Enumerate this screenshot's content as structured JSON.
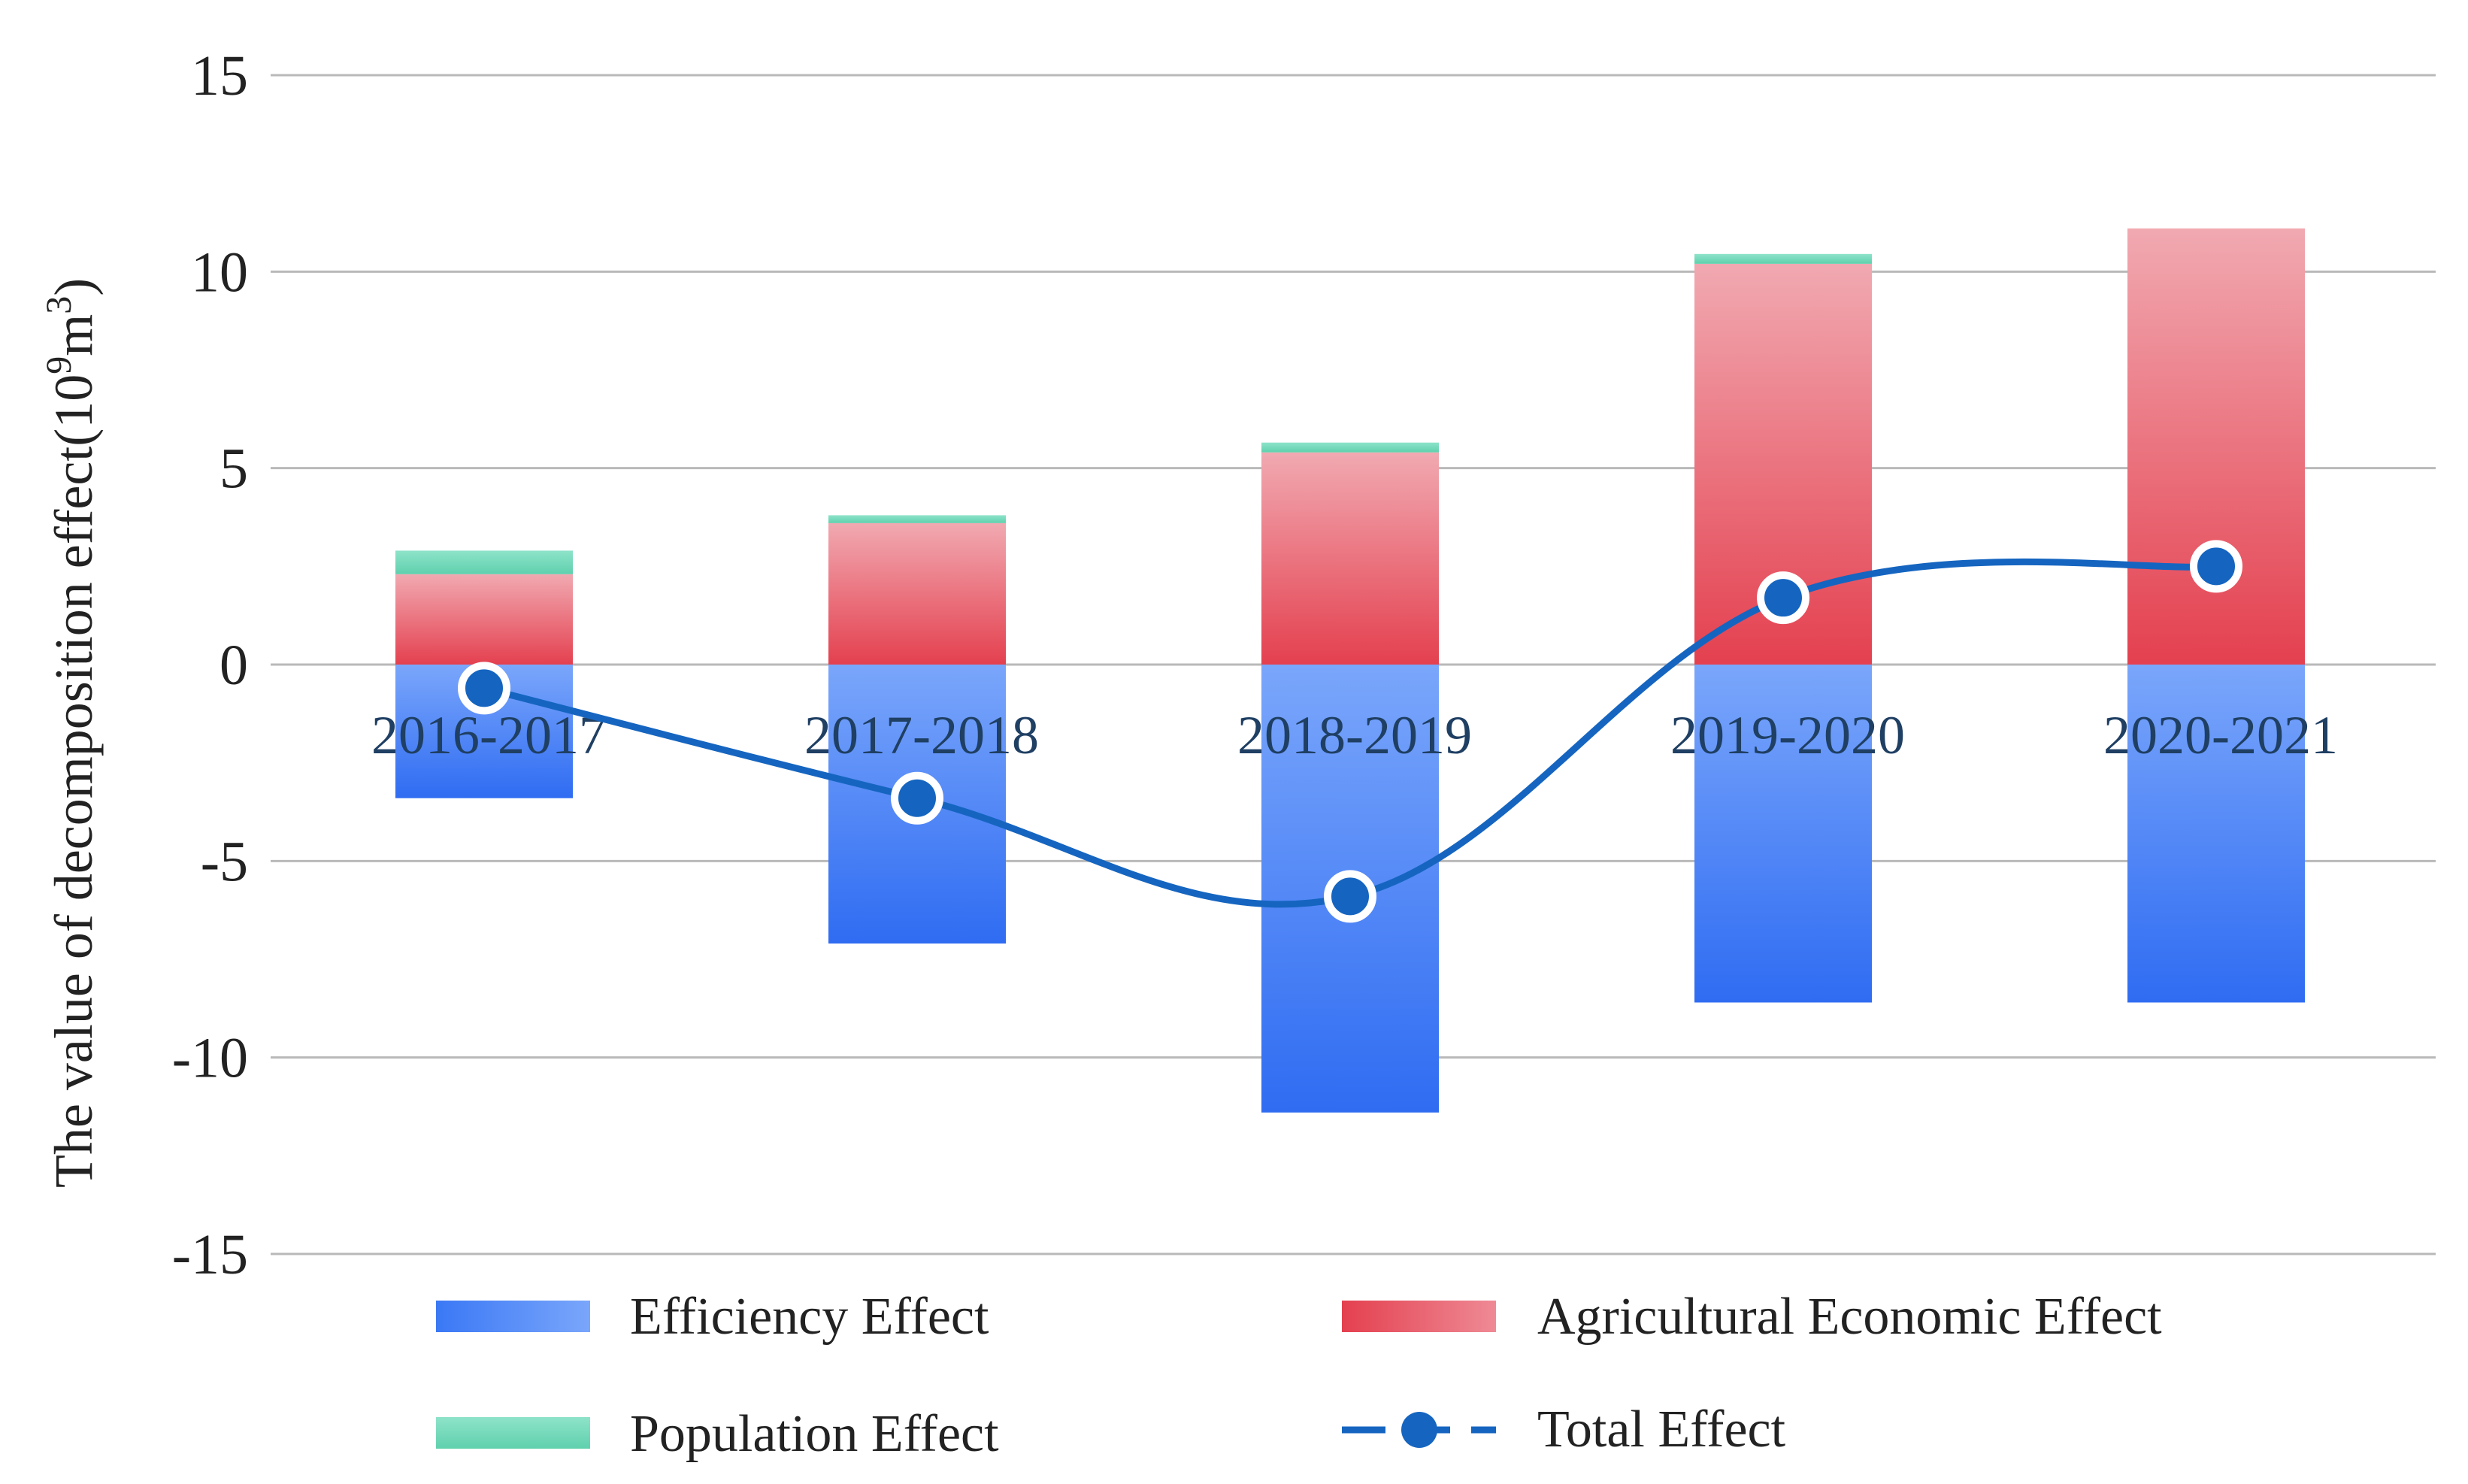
{
  "chart_data": {
    "type": "bar",
    "stacked": true,
    "title": "",
    "xlabel": "",
    "ylabel": "The value of decomposition effect(10",
    "ylabel_sup1": "9",
    "ylabel_mid": "m",
    "ylabel_sup2": "3",
    "ylabel_end": ")",
    "ylim": [
      -15,
      15
    ],
    "yticks": [
      15,
      10,
      5,
      0,
      -5,
      -10,
      -15
    ],
    "ytick_labels": [
      "15",
      "10",
      "5",
      "0",
      "-5",
      "-10",
      "-15"
    ],
    "categories": [
      "2016-2017",
      "2017-2018",
      "2018-2019",
      "2019-2020",
      "2020-2021"
    ],
    "series": [
      {
        "name": "Efficiency Effect",
        "kind": "bar",
        "color": "#3a78f5",
        "values": [
          -3.4,
          -7.1,
          -11.4,
          -8.6,
          -8.6
        ]
      },
      {
        "name": "Agricultural Economic Effect",
        "kind": "bar",
        "color": "#e8505f",
        "values": [
          2.3,
          3.6,
          5.4,
          10.2,
          11.1
        ]
      },
      {
        "name": "Population Effect",
        "kind": "bar",
        "color": "#6fd8b8",
        "values": [
          0.6,
          0.2,
          0.25,
          0.25,
          0.0
        ]
      },
      {
        "name": "Total Effect",
        "kind": "line",
        "color": "#1565c0",
        "values": [
          -0.6,
          -3.4,
          -5.9,
          1.7,
          2.5
        ]
      }
    ],
    "legend": {
      "position": "bottom",
      "items": [
        "Efficiency Effect",
        "Agricultural Economic Effect",
        "Population Effect",
        "Total Effect"
      ]
    }
  }
}
